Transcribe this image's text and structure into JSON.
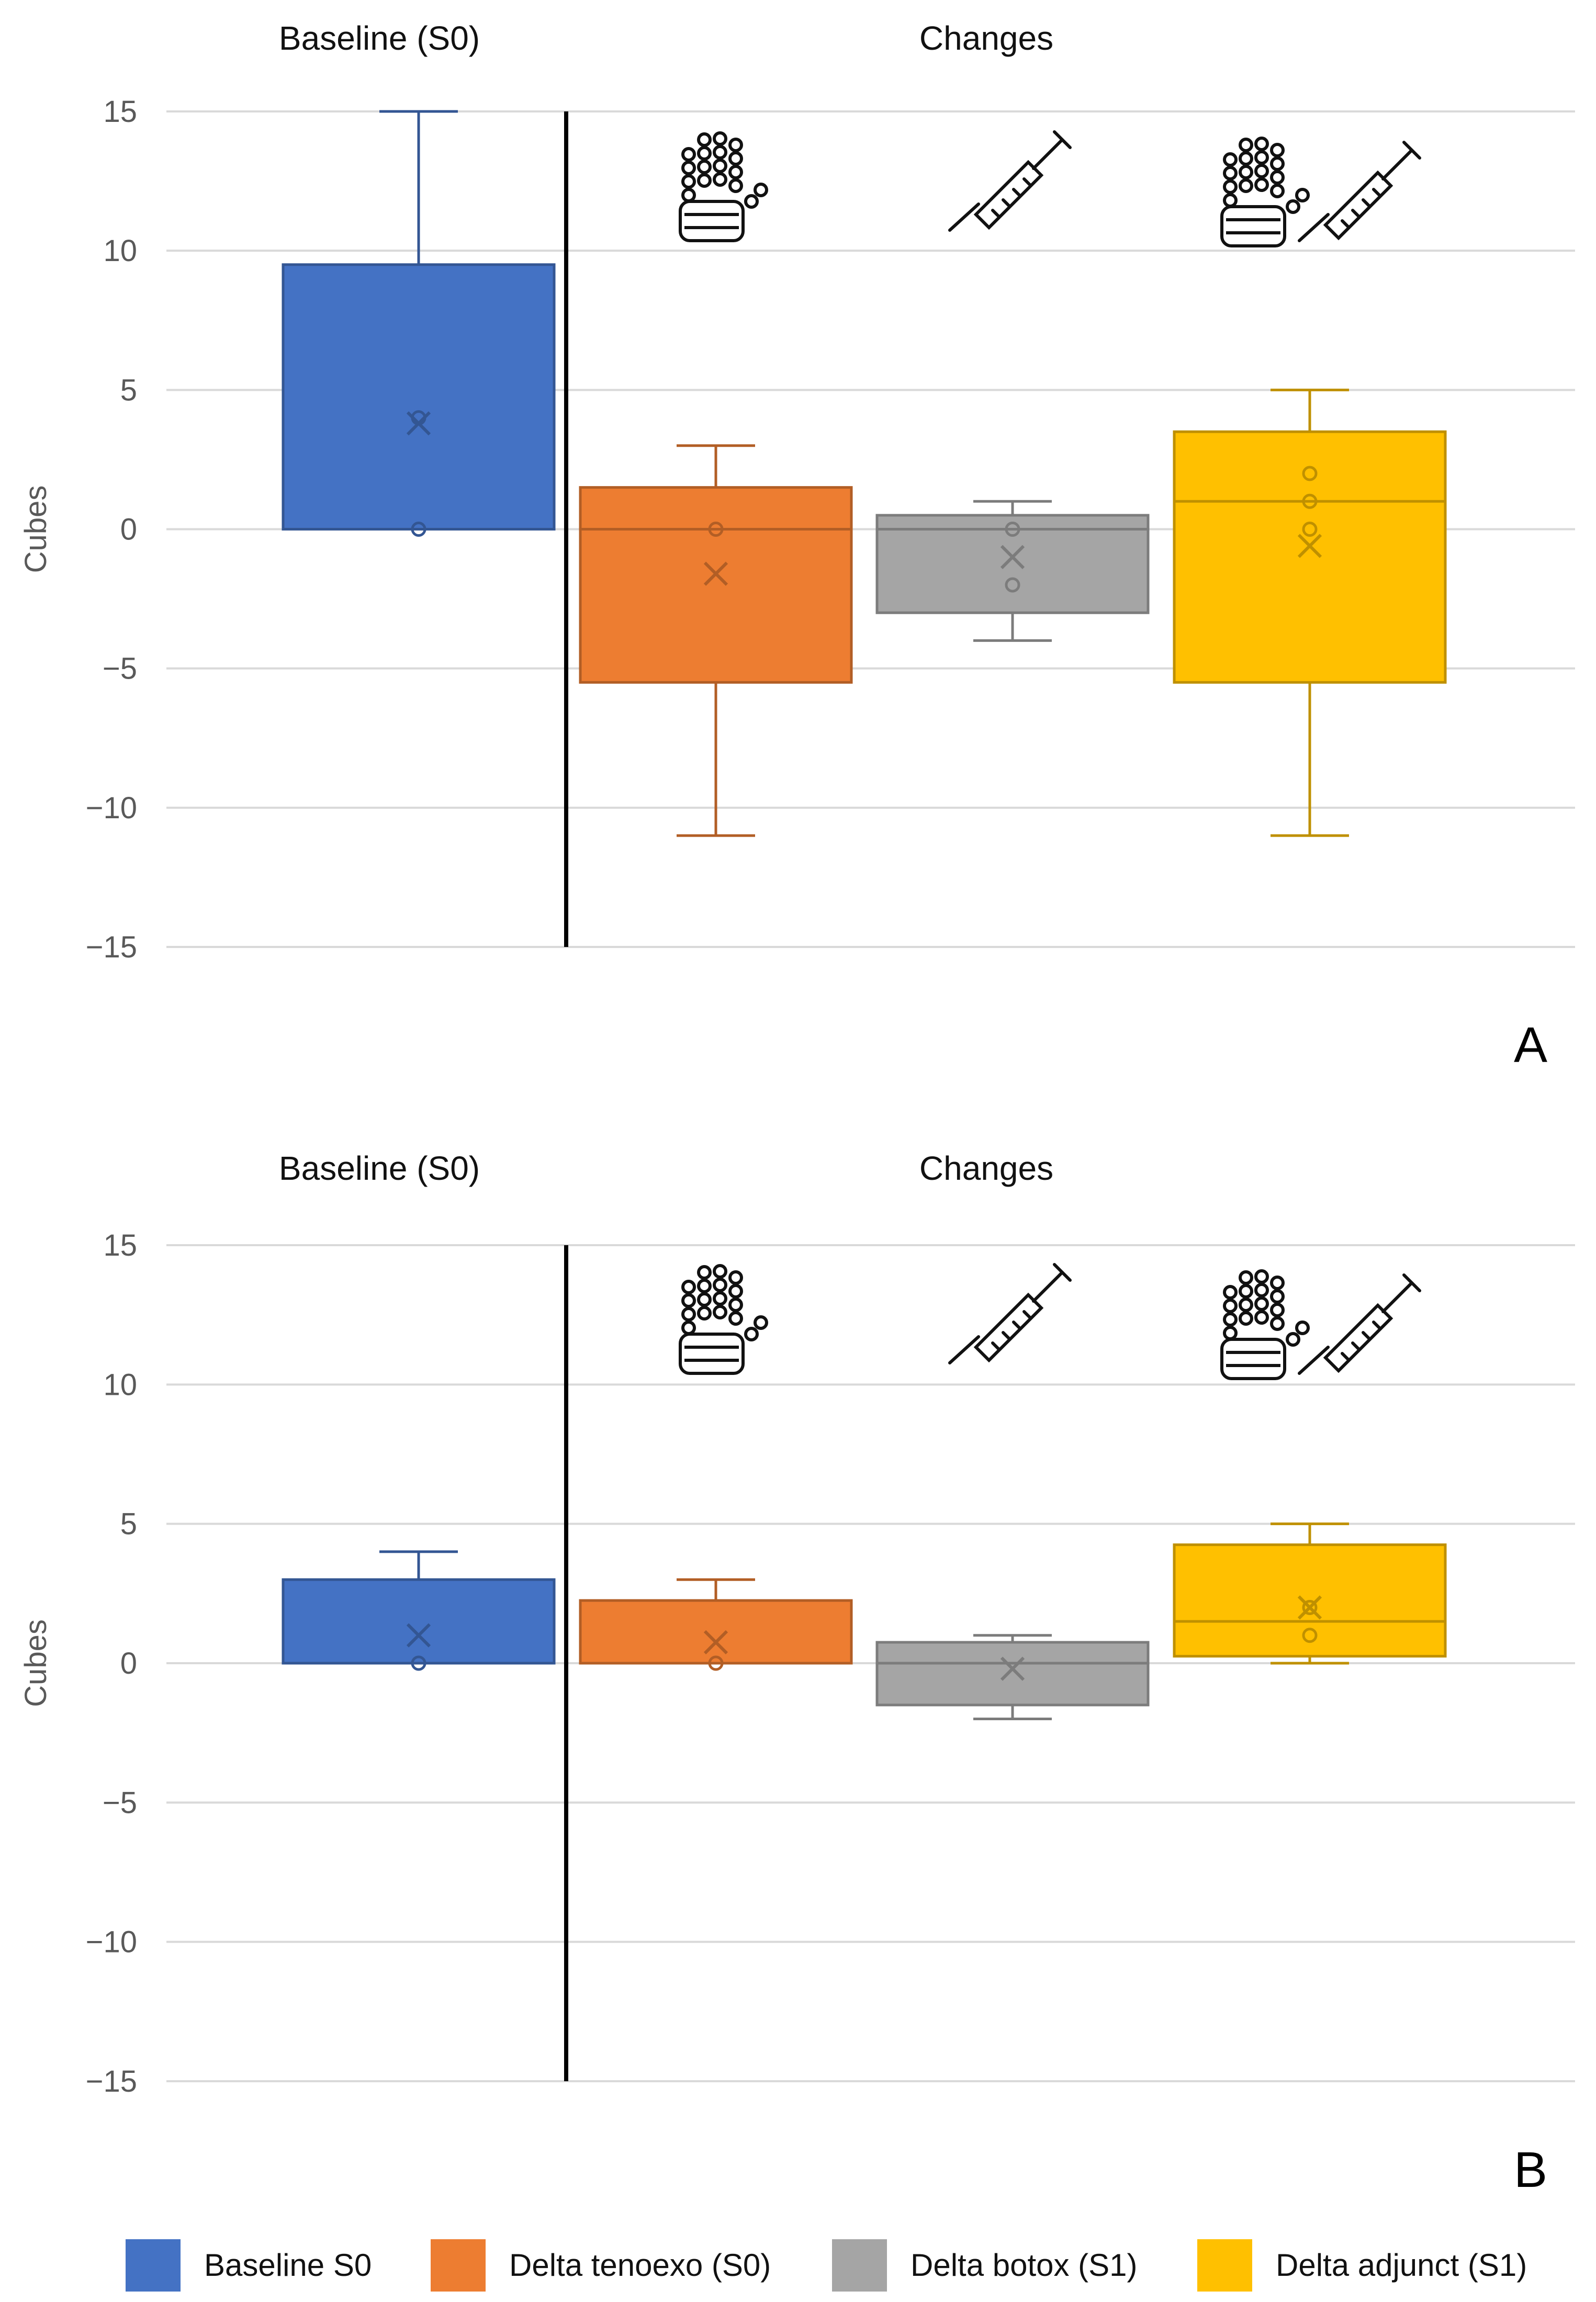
{
  "chart_data": [
    {
      "type": "box",
      "panel_label": "A",
      "section_labels": {
        "baseline": "Baseline (S0)",
        "changes": "Changes"
      },
      "ylabel": "Cubes",
      "ylim": [
        -15,
        15
      ],
      "yticks": [
        "15",
        "10",
        "5",
        "0",
        "−5",
        "−10",
        "−15"
      ],
      "ytick_values": [
        15,
        10,
        5,
        0,
        -5,
        -10,
        -15
      ],
      "grid": true,
      "boxes": [
        {
          "name": "Baseline S0",
          "color": "#4472C4",
          "min": 0,
          "q1": 0,
          "median": 0,
          "q3": 9.5,
          "max": 15,
          "mean": 3.8,
          "points": [
            0,
            4
          ]
        },
        {
          "name": "Delta tenoexo (S0)",
          "color": "#ED7D31",
          "icon": "robotic-hand",
          "min": -11,
          "q1": -5.5,
          "median": 0,
          "q3": 1.5,
          "max": 3,
          "mean": -1.6,
          "points": [
            0
          ]
        },
        {
          "name": "Delta botox (S1)",
          "color": "#A5A5A5",
          "icon": "syringe",
          "min": -4,
          "q1": -3,
          "median": 0,
          "q3": 0.5,
          "max": 1,
          "mean": -1,
          "points": [
            0,
            -2
          ]
        },
        {
          "name": "Delta adjunct (S1)",
          "color": "#FFC000",
          "icon": "robotic-hand-and-syringe",
          "min": -11,
          "q1": -5.5,
          "median": 1,
          "q3": 3.5,
          "max": 5,
          "mean": -0.6,
          "points": [
            2,
            1,
            0
          ]
        }
      ]
    },
    {
      "type": "box",
      "panel_label": "B",
      "section_labels": {
        "baseline": "Baseline (S0)",
        "changes": "Changes"
      },
      "ylabel": "Cubes",
      "ylim": [
        -15,
        15
      ],
      "yticks": [
        "15",
        "10",
        "5",
        "0",
        "−5",
        "−10",
        "−15"
      ],
      "ytick_values": [
        15,
        10,
        5,
        0,
        -5,
        -10,
        -15
      ],
      "grid": true,
      "boxes": [
        {
          "name": "Baseline S0",
          "color": "#4472C4",
          "min": 0,
          "q1": 0,
          "median": 0,
          "q3": 3,
          "max": 4,
          "mean": 1,
          "points": [
            0
          ]
        },
        {
          "name": "Delta tenoexo (S0)",
          "color": "#ED7D31",
          "icon": "robotic-hand",
          "min": 0,
          "q1": 0,
          "median": 0,
          "q3": 2.25,
          "max": 3,
          "mean": 0.75,
          "points": [
            0
          ]
        },
        {
          "name": "Delta botox (S1)",
          "color": "#A5A5A5",
          "icon": "syringe",
          "min": -2,
          "q1": -1.5,
          "median": 0,
          "q3": 0.75,
          "max": 1,
          "mean": -0.2,
          "points": []
        },
        {
          "name": "Delta adjunct (S1)",
          "color": "#FFC000",
          "icon": "robotic-hand-and-syringe",
          "min": 0,
          "q1": 0.25,
          "median": 1.5,
          "q3": 4.25,
          "max": 5,
          "mean": 2,
          "points": [
            2,
            1
          ]
        }
      ]
    }
  ],
  "legend": {
    "placement": "bottom",
    "items": [
      {
        "label": "Baseline S0",
        "color": "#4472C4"
      },
      {
        "label": "Delta tenoexo (S0)",
        "color": "#ED7D31"
      },
      {
        "label": "Delta botox (S1)",
        "color": "#A5A5A5"
      },
      {
        "label": "Delta adjunct (S1)",
        "color": "#FFC000"
      }
    ]
  }
}
